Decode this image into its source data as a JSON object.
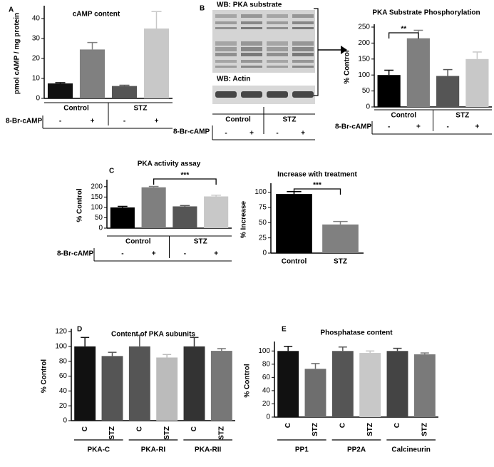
{
  "chart_data": [
    {
      "type": "bar",
      "panel": "A",
      "title": "cAMP content",
      "ylabel": "pmol cAMP / mg protein",
      "categories": [
        "-",
        "+",
        "-",
        "+"
      ],
      "groups": [
        "Control",
        "STZ"
      ],
      "row_label": "8-Br-cAMP",
      "values": [
        7.5,
        24.5,
        6.2,
        35
      ],
      "errors": [
        0.4,
        3.5,
        0.4,
        8.5
      ],
      "colors": [
        "#111111",
        "#808080",
        "#555555",
        "#c8c8c8"
      ],
      "ylim": [
        0,
        45
      ],
      "yticks": [
        0,
        10,
        20,
        30,
        40
      ]
    },
    {
      "type": "bar",
      "title": "PKA Substrate Phosphorylation",
      "ylabel": "% Control",
      "categories": [
        "-",
        "+",
        "-",
        "+"
      ],
      "groups": [
        "Control",
        "STZ"
      ],
      "row_label": "8-Br-cAMP",
      "values": [
        100,
        215,
        97,
        150
      ],
      "errors": [
        15,
        25,
        20,
        22
      ],
      "annotation": "**",
      "colors": [
        "#000000",
        "#7f7f7f",
        "#555555",
        "#c8c8c8"
      ],
      "ylim": [
        0,
        250
      ],
      "yticks": [
        0,
        50,
        100,
        150,
        200,
        250
      ]
    },
    {
      "type": "bar",
      "panel": "C",
      "title": "PKA activity assay",
      "ylabel": "% Control",
      "categories": [
        "-",
        "+",
        "-",
        "+"
      ],
      "groups": [
        "Control",
        "STZ"
      ],
      "row_label": "8-Br-cAMP",
      "values": [
        100,
        197,
        105,
        153
      ],
      "errors": [
        5,
        4,
        4,
        6
      ],
      "annotation": "***",
      "colors": [
        "#000000",
        "#7f7f7f",
        "#555555",
        "#c8c8c8"
      ],
      "ylim": [
        0,
        220
      ],
      "yticks": [
        0,
        50,
        100,
        150,
        200
      ]
    },
    {
      "type": "bar",
      "title": "Increase with treatment",
      "ylabel": "% Increase",
      "categories": [
        "Control",
        "STZ"
      ],
      "values": [
        97,
        47
      ],
      "errors": [
        4,
        5
      ],
      "annotation": "***",
      "colors": [
        "#000000",
        "#808080"
      ],
      "ylim": [
        0,
        110
      ],
      "yticks": [
        0,
        25,
        50,
        75,
        100
      ]
    },
    {
      "type": "bar",
      "panel": "D",
      "title": "Content of PKA subunits",
      "ylabel": "% Control",
      "categories": [
        "C",
        "STZ",
        "C",
        "STZ",
        "C",
        "STZ"
      ],
      "groups": [
        "PKA-C",
        "PKA-RI",
        "PKA-RII"
      ],
      "values": [
        100,
        87,
        100,
        85,
        100,
        94
      ],
      "errors": [
        12,
        5,
        15,
        4,
        12,
        3
      ],
      "colors": [
        "#111111",
        "#555555",
        "#555555",
        "#bbbbbb",
        "#333333",
        "#777777"
      ],
      "ylim": [
        0,
        120
      ],
      "yticks": [
        0,
        20,
        40,
        60,
        80,
        100,
        120
      ]
    },
    {
      "type": "bar",
      "panel": "E",
      "title": "Phosphatase content",
      "ylabel": "% Control",
      "categories": [
        "C",
        "STZ",
        "C",
        "STZ",
        "C",
        "STZ"
      ],
      "groups": [
        "PP1",
        "PP2A",
        "Calcineurin"
      ],
      "values": [
        100,
        73,
        100,
        97,
        100,
        95
      ],
      "errors": [
        7,
        8,
        6,
        3,
        4,
        2
      ],
      "colors": [
        "#111111",
        "#6e6e6e",
        "#555555",
        "#c8c8c8",
        "#444444",
        "#7a7a7a"
      ],
      "ylim": [
        0,
        110
      ],
      "yticks": [
        0,
        20,
        40,
        60,
        80,
        100
      ]
    }
  ],
  "blot": {
    "panel": "B",
    "labels": [
      "WB: PKA substrate",
      "WB: Actin"
    ],
    "categories": [
      "-",
      "+",
      "-",
      "+"
    ],
    "groups": [
      "Control",
      "STZ"
    ],
    "row_label": "8-Br-cAMP"
  }
}
